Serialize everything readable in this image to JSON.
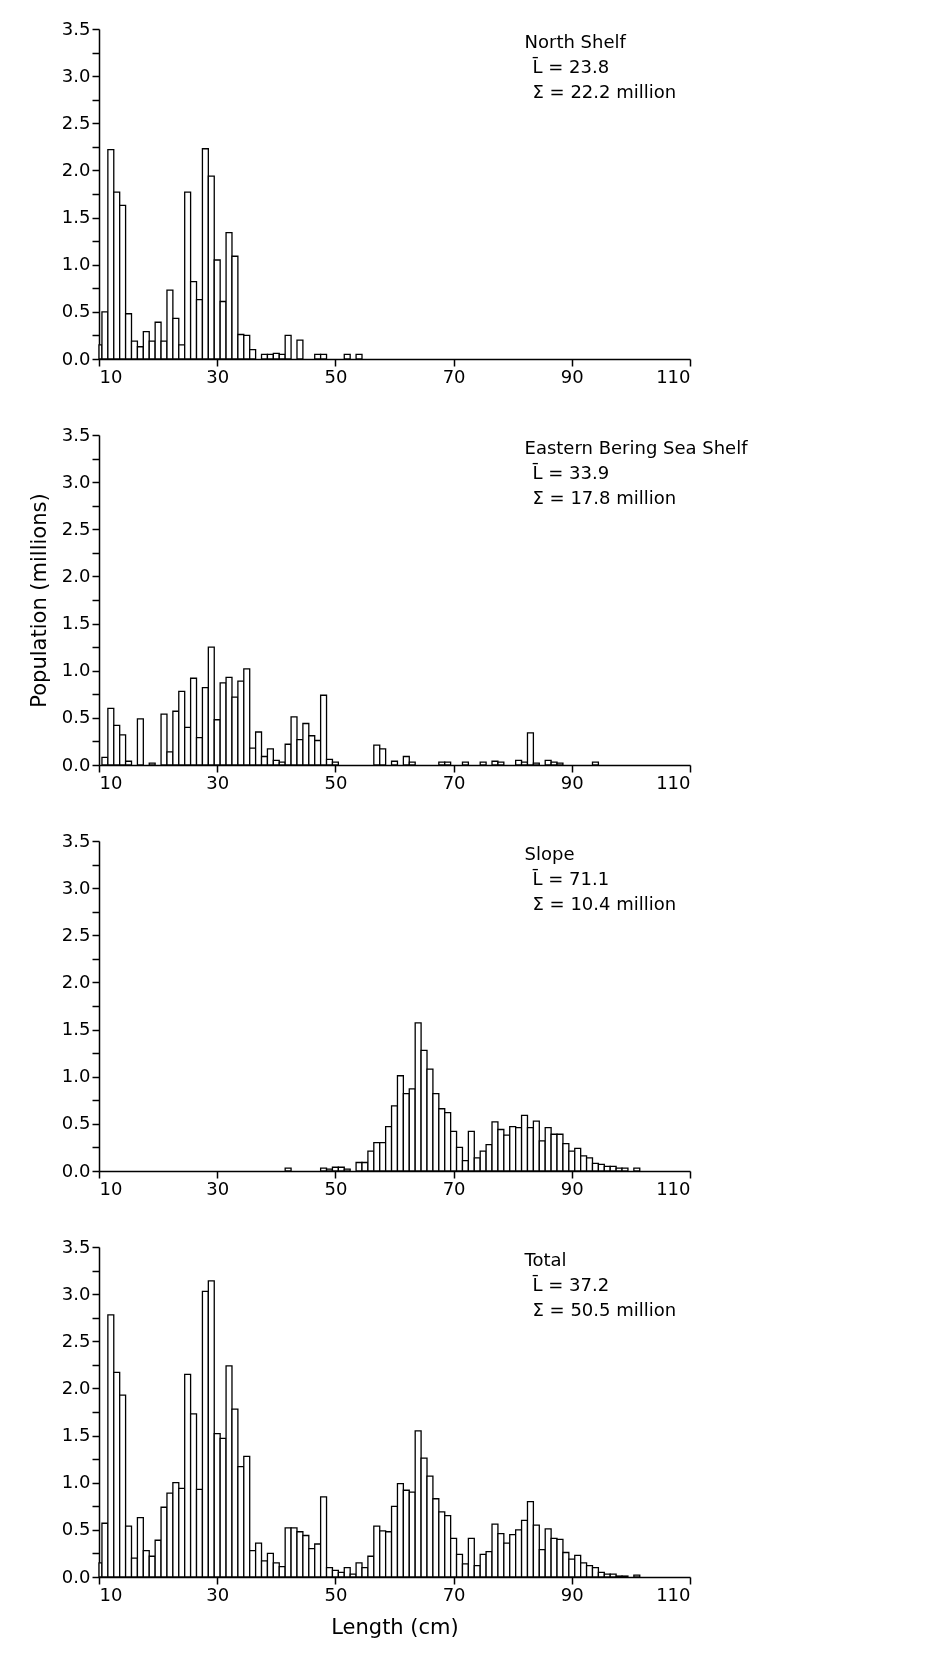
{
  "chart_data": [
    {
      "type": "histogram",
      "color": "#ffffff",
      "xlim": [
        10,
        110
      ],
      "xticks": [
        10,
        30,
        50,
        70,
        90,
        110
      ],
      "ylim": [
        0,
        3.5
      ],
      "yticks": [
        {
          "value": 0,
          "label": "0.0"
        },
        {
          "value": 0.25,
          "label": null
        },
        {
          "value": 0.5,
          "label": "0.5"
        },
        {
          "value": 0.75,
          "label": null
        },
        {
          "value": 1,
          "label": "1.0"
        },
        {
          "value": 1.25,
          "label": null
        },
        {
          "value": 1.5,
          "label": "1.5"
        },
        {
          "value": 1.75,
          "label": null
        },
        {
          "value": 2,
          "label": "2.0"
        },
        {
          "value": 2.25,
          "label": null
        },
        {
          "value": 2.5,
          "label": "2.5"
        },
        {
          "value": 2.75,
          "label": null
        },
        {
          "value": 3,
          "label": "3.0"
        },
        {
          "value": 3.25,
          "label": null
        },
        {
          "value": 3.5,
          "label": "3.5"
        }
      ],
      "annotations": [
        "North Shelf",
        "L̄ = 23.8",
        "Σ = 22.2 million"
      ],
      "bins": [
        10,
        10.5,
        11.5,
        12.5,
        13.5,
        14.5,
        15.5,
        16.5,
        17.5,
        18.5,
        19.5,
        20.5,
        21.5,
        22.5,
        23.5,
        24.5,
        25.5,
        26.5,
        27.5,
        28.5,
        29.5,
        30.5,
        31.5,
        32.5,
        33.5,
        34.5,
        35.5,
        36.5,
        37.5,
        38.5,
        39.5,
        40.5,
        41.5,
        42.5,
        43.5,
        44.5,
        46.5,
        47.5,
        48.5,
        51.5,
        52.5,
        53.5,
        54.5
      ],
      "values": [
        0.15,
        0.5,
        2.22,
        1.77,
        1.63,
        0.48,
        0.19,
        0.13,
        0.29,
        0.19,
        0.39,
        0.19,
        0.73,
        0.43,
        0.15,
        1.77,
        0.82,
        0.63,
        2.23,
        1.94,
        1.05,
        0.61,
        1.34,
        1.09,
        0.26,
        0.25,
        0.1,
        null,
        0.05,
        0.05,
        0.06,
        0.05,
        0.25,
        null,
        0.2,
        null,
        0.05,
        0.05,
        null,
        0.05,
        null,
        0.05
      ]
    },
    {
      "type": "histogram",
      "color": "#ffffff",
      "ylabel": "Population (millions)",
      "xlim": [
        10,
        110
      ],
      "xticks": [
        10,
        30,
        50,
        70,
        90,
        110
      ],
      "ylim": [
        0,
        3.5
      ],
      "yticks": [
        {
          "value": 0,
          "label": "0.0"
        },
        {
          "value": 0.25,
          "label": null
        },
        {
          "value": 0.5,
          "label": "0.5"
        },
        {
          "value": 0.75,
          "label": null
        },
        {
          "value": 1,
          "label": "1.0"
        },
        {
          "value": 1.25,
          "label": null
        },
        {
          "value": 1.5,
          "label": "1.5"
        },
        {
          "value": 1.75,
          "label": null
        },
        {
          "value": 2,
          "label": "2.0"
        },
        {
          "value": 2.25,
          "label": null
        },
        {
          "value": 2.5,
          "label": "2.5"
        },
        {
          "value": 2.75,
          "label": null
        },
        {
          "value": 3,
          "label": "3.0"
        },
        {
          "value": 3.25,
          "label": null
        },
        {
          "value": 3.5,
          "label": "3.5"
        }
      ],
      "annotations": [
        "Eastern Bering Sea Shelf",
        "L̄ = 33.9",
        "Σ = 17.8 million"
      ],
      "bins": [
        10.5,
        11.5,
        12.5,
        13.5,
        14.5,
        15.5,
        16.5,
        17.5,
        18.5,
        19.5,
        20.5,
        21.5,
        22.5,
        23.5,
        24.5,
        25.5,
        26.5,
        27.5,
        28.5,
        29.5,
        30.5,
        31.5,
        32.5,
        33.5,
        34.5,
        35.5,
        36.5,
        37.5,
        38.5,
        39.5,
        40.5,
        41.5,
        42.5,
        43.5,
        44.5,
        45.5,
        46.5,
        47.5,
        48.5,
        49.5,
        50.5,
        56.5,
        57.5,
        58.5,
        59.5,
        60.5,
        61.5,
        62.5,
        63.5,
        67.5,
        68.5,
        69.5,
        71.5,
        72.5,
        74.5,
        75.5,
        76.5,
        77.5,
        78.5,
        80.5,
        81.5,
        82.5,
        83.5,
        84.5,
        85.5,
        86.5,
        87.5,
        88.5,
        93.5,
        94.5
      ],
      "values": [
        0.08,
        0.6,
        0.42,
        0.32,
        0.04,
        null,
        0.49,
        null,
        0.02,
        null,
        0.54,
        0.14,
        0.57,
        0.78,
        0.4,
        0.92,
        0.29,
        0.82,
        1.25,
        0.48,
        0.87,
        0.93,
        0.72,
        0.89,
        1.02,
        0.18,
        0.35,
        0.09,
        0.17,
        0.05,
        0.03,
        0.22,
        0.51,
        0.27,
        0.44,
        0.31,
        0.26,
        0.74,
        0.06,
        0.03,
        null,
        0.21,
        0.17,
        null,
        0.04,
        null,
        0.09,
        0.03,
        null,
        0.03,
        0.03,
        null,
        0.03,
        null,
        0.03,
        null,
        0.04,
        0.03,
        null,
        0.05,
        0.03,
        0.34,
        0.02,
        null,
        0.05,
        0.03,
        0.02,
        null,
        0.03
      ]
    },
    {
      "type": "histogram",
      "color": "#ffffff",
      "xlim": [
        10,
        110
      ],
      "xticks": [
        10,
        30,
        50,
        70,
        90,
        110
      ],
      "ylim": [
        0,
        3.5
      ],
      "yticks": [
        {
          "value": 0,
          "label": "0.0"
        },
        {
          "value": 0.25,
          "label": null
        },
        {
          "value": 0.5,
          "label": "0.5"
        },
        {
          "value": 0.75,
          "label": null
        },
        {
          "value": 1,
          "label": "1.0"
        },
        {
          "value": 1.25,
          "label": null
        },
        {
          "value": 1.5,
          "label": "1.5"
        },
        {
          "value": 1.75,
          "label": null
        },
        {
          "value": 2,
          "label": "2.0"
        },
        {
          "value": 2.25,
          "label": null
        },
        {
          "value": 2.5,
          "label": "2.5"
        },
        {
          "value": 2.75,
          "label": null
        },
        {
          "value": 3,
          "label": "3.0"
        },
        {
          "value": 3.25,
          "label": null
        },
        {
          "value": 3.5,
          "label": "3.5"
        }
      ],
      "annotations": [
        "Slope",
        "L̄ = 71.1",
        "Σ = 10.4 million"
      ],
      "bins": [
        41.5,
        42.5,
        47.5,
        48.5,
        49.5,
        50.5,
        51.5,
        52.5,
        53.5,
        54.5,
        55.5,
        56.5,
        57.5,
        58.5,
        59.5,
        60.5,
        61.5,
        62.5,
        63.5,
        64.5,
        65.5,
        66.5,
        67.5,
        68.5,
        69.5,
        70.5,
        71.5,
        72.5,
        73.5,
        74.5,
        75.5,
        76.5,
        77.5,
        78.5,
        79.5,
        80.5,
        81.5,
        82.5,
        83.5,
        84.5,
        85.5,
        86.5,
        87.5,
        88.5,
        89.5,
        90.5,
        91.5,
        92.5,
        93.5,
        94.5,
        95.5,
        96.5,
        97.5,
        98.5,
        99.5,
        100.5,
        101.5
      ],
      "values": [
        0.03,
        null,
        0.03,
        0.02,
        0.04,
        0.04,
        0.02,
        null,
        0.09,
        0.09,
        0.21,
        0.3,
        0.3,
        0.47,
        0.69,
        1.01,
        0.82,
        0.87,
        1.57,
        1.28,
        1.08,
        0.82,
        0.66,
        0.62,
        0.42,
        0.25,
        0.11,
        0.42,
        0.14,
        0.21,
        0.28,
        0.52,
        0.44,
        0.38,
        0.47,
        0.46,
        0.59,
        0.46,
        0.53,
        0.32,
        0.46,
        0.39,
        0.39,
        0.29,
        0.21,
        0.24,
        0.16,
        0.14,
        0.08,
        0.07,
        0.05,
        0.05,
        0.03,
        0.03,
        null,
        0.03
      ]
    },
    {
      "type": "histogram",
      "color": "#ffffff",
      "xlabel": "Length (cm)",
      "xlim": [
        10,
        110
      ],
      "xticks": [
        10,
        30,
        50,
        70,
        90,
        110
      ],
      "ylim": [
        0,
        3.5
      ],
      "yticks": [
        {
          "value": 0,
          "label": "0.0"
        },
        {
          "value": 0.25,
          "label": null
        },
        {
          "value": 0.5,
          "label": "0.5"
        },
        {
          "value": 0.75,
          "label": null
        },
        {
          "value": 1,
          "label": "1.0"
        },
        {
          "value": 1.25,
          "label": null
        },
        {
          "value": 1.5,
          "label": "1.5"
        },
        {
          "value": 1.75,
          "label": null
        },
        {
          "value": 2,
          "label": "2.0"
        },
        {
          "value": 2.25,
          "label": null
        },
        {
          "value": 2.5,
          "label": "2.5"
        },
        {
          "value": 2.75,
          "label": null
        },
        {
          "value": 3,
          "label": "3.0"
        },
        {
          "value": 3.25,
          "label": null
        },
        {
          "value": 3.5,
          "label": "3.5"
        }
      ],
      "annotations": [
        "Total",
        "L̄ = 37.2",
        "Σ = 50.5 million"
      ],
      "bins": [
        10,
        10.5,
        11.5,
        12.5,
        13.5,
        14.5,
        15.5,
        16.5,
        17.5,
        18.5,
        19.5,
        20.5,
        21.5,
        22.5,
        23.5,
        24.5,
        25.5,
        26.5,
        27.5,
        28.5,
        29.5,
        30.5,
        31.5,
        32.5,
        33.5,
        34.5,
        35.5,
        36.5,
        37.5,
        38.5,
        39.5,
        40.5,
        41.5,
        42.5,
        43.5,
        44.5,
        45.5,
        46.5,
        47.5,
        48.5,
        49.5,
        50.5,
        51.5,
        52.5,
        53.5,
        54.5,
        55.5,
        56.5,
        57.5,
        58.5,
        59.5,
        60.5,
        61.5,
        62.5,
        63.5,
        64.5,
        65.5,
        66.5,
        67.5,
        68.5,
        69.5,
        70.5,
        71.5,
        72.5,
        73.5,
        74.5,
        75.5,
        76.5,
        77.5,
        78.5,
        79.5,
        80.5,
        81.5,
        82.5,
        83.5,
        84.5,
        85.5,
        86.5,
        87.5,
        88.5,
        89.5,
        90.5,
        91.5,
        92.5,
        93.5,
        94.5,
        95.5,
        96.5,
        97.5,
        98.5,
        99.5,
        100.5,
        101.5
      ],
      "values": [
        0.15,
        0.57,
        2.78,
        2.17,
        1.93,
        0.54,
        0.2,
        0.63,
        0.28,
        0.22,
        0.39,
        0.74,
        0.89,
        1.0,
        0.94,
        2.15,
        1.73,
        0.93,
        3.03,
        3.14,
        1.52,
        1.47,
        2.24,
        1.78,
        1.17,
        1.28,
        0.28,
        0.36,
        0.17,
        0.25,
        0.15,
        0.11,
        0.52,
        0.52,
        0.48,
        0.44,
        0.3,
        0.35,
        0.85,
        0.1,
        0.07,
        0.05,
        0.1,
        0.03,
        0.15,
        0.1,
        0.22,
        0.54,
        0.49,
        0.48,
        0.75,
        0.99,
        0.92,
        0.9,
        1.55,
        1.26,
        1.07,
        0.83,
        0.69,
        0.65,
        0.41,
        0.24,
        0.14,
        0.41,
        0.12,
        0.24,
        0.27,
        0.56,
        0.46,
        0.36,
        0.45,
        0.5,
        0.6,
        0.8,
        0.55,
        0.29,
        0.51,
        0.41,
        0.4,
        0.26,
        0.19,
        0.23,
        0.15,
        0.12,
        0.1,
        0.05,
        0.03,
        0.03,
        0.01,
        0.01,
        null,
        0.02
      ]
    }
  ]
}
